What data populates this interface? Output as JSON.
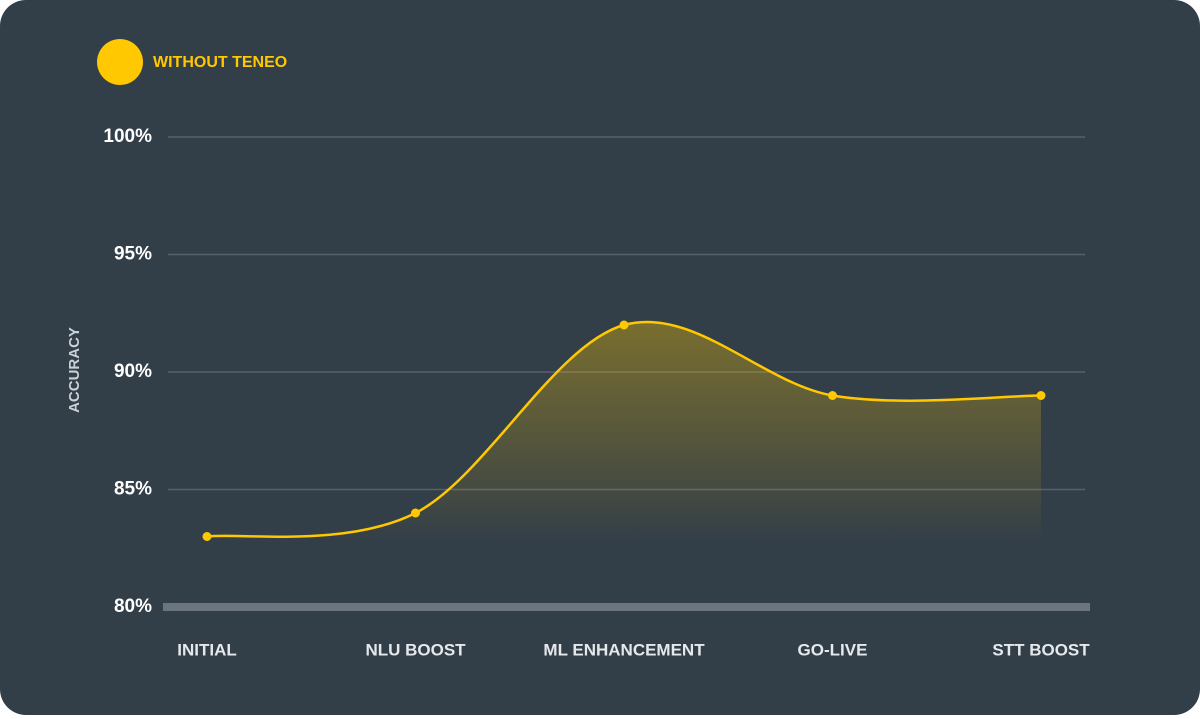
{
  "chart_data": {
    "type": "line",
    "y_label": "ACCURACY",
    "categories": [
      "INITIAL",
      "NLU BOOST",
      "ML ENHANCEMENT",
      "GO-LIVE",
      "STT BOOST"
    ],
    "series": [
      {
        "name": "WITHOUT TENEO",
        "color": "#ffc800",
        "values": [
          83,
          84,
          92,
          89,
          89
        ]
      }
    ],
    "ylim": [
      80,
      100
    ],
    "yticks": [
      {
        "value": 80,
        "label": "80%"
      },
      {
        "value": 85,
        "label": "85%"
      },
      {
        "value": 90,
        "label": "90%"
      },
      {
        "value": 95,
        "label": "95%"
      },
      {
        "value": 100,
        "label": "100%"
      }
    ],
    "grid": true,
    "area": true,
    "legend": "top-left"
  }
}
